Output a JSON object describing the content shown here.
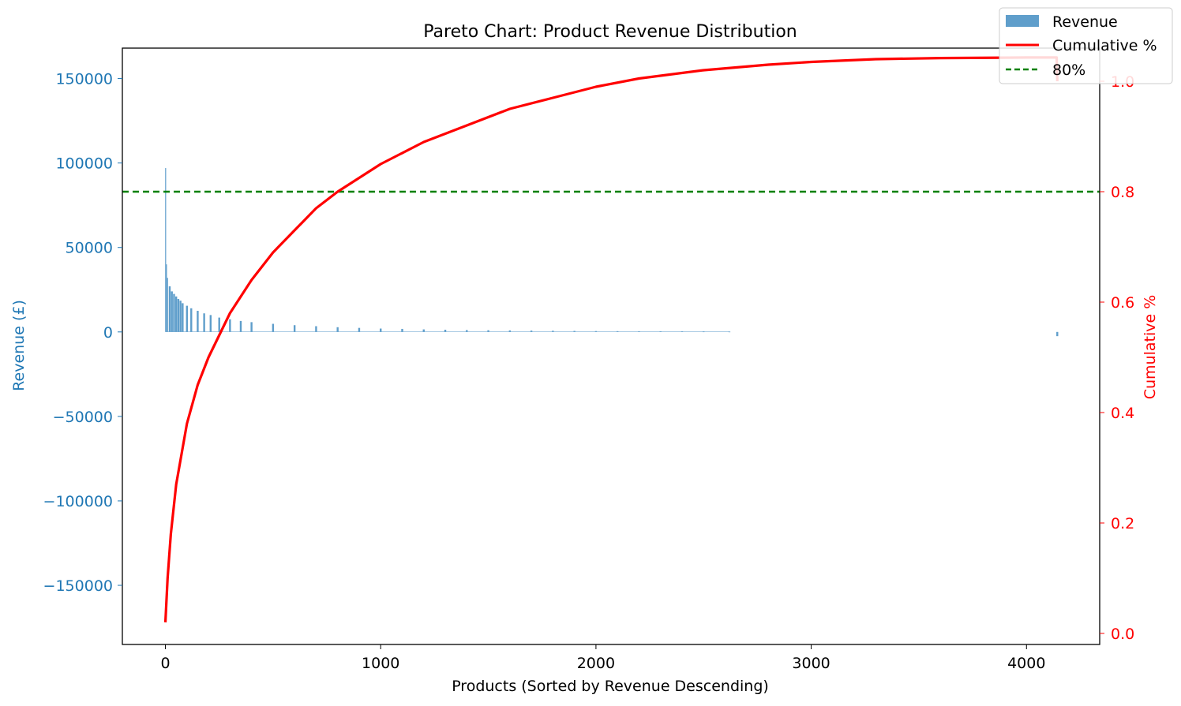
{
  "chart_data": {
    "type": "bar",
    "title": "Pareto Chart: Product Revenue Distribution",
    "xlabel": "Products (Sorted by Revenue Descending)",
    "ylabel": "Revenue (£)",
    "y2label": "Cumulative %",
    "xlim": [
      -200,
      4340
    ],
    "ylim": [
      -185000,
      168000
    ],
    "y2lim": [
      -0.02,
      1.06
    ],
    "xticks": [
      0,
      1000,
      2000,
      3000,
      4000
    ],
    "yticks": [
      -150000,
      -100000,
      -50000,
      0,
      50000,
      100000,
      150000
    ],
    "y2ticks": [
      0.0,
      0.2,
      0.4,
      0.6,
      0.8,
      1.0
    ],
    "ytick_labels": [
      "−150000",
      "−100000",
      "−50000",
      "0",
      "50000",
      "100000",
      "150000"
    ],
    "y2tick_labels": [
      "0.0",
      "0.2",
      "0.4",
      "0.6",
      "0.8",
      "1.0"
    ],
    "legend_position": "top-right",
    "grid": false,
    "colors": {
      "bars": "#5f9ecb",
      "cumulative": "#ff0000",
      "threshold": "#008000",
      "left_axis": "#1f77b4",
      "right_axis": "#ff0000"
    },
    "series": [
      {
        "name": "Revenue",
        "type": "bar",
        "axis": "left",
        "points": [
          [
            1,
            97000
          ],
          [
            5,
            40000
          ],
          [
            10,
            32000
          ],
          [
            20,
            27000
          ],
          [
            30,
            24000
          ],
          [
            40,
            22500
          ],
          [
            50,
            21000
          ],
          [
            60,
            19500
          ],
          [
            70,
            18500
          ],
          [
            80,
            17000
          ],
          [
            100,
            15500
          ],
          [
            120,
            14000
          ],
          [
            150,
            12500
          ],
          [
            180,
            11000
          ],
          [
            210,
            10000
          ],
          [
            250,
            8500
          ],
          [
            300,
            7500
          ],
          [
            350,
            6500
          ],
          [
            400,
            5800
          ],
          [
            500,
            4800
          ],
          [
            600,
            4000
          ],
          [
            700,
            3400
          ],
          [
            800,
            2800
          ],
          [
            900,
            2400
          ],
          [
            1000,
            2000
          ],
          [
            1100,
            1800
          ],
          [
            1200,
            1500
          ],
          [
            1300,
            1300
          ],
          [
            1400,
            1100
          ],
          [
            1500,
            1000
          ],
          [
            1600,
            900
          ],
          [
            1700,
            800
          ],
          [
            1800,
            700
          ],
          [
            1900,
            600
          ],
          [
            2000,
            500
          ],
          [
            2100,
            450
          ],
          [
            2200,
            400
          ],
          [
            2300,
            350
          ],
          [
            2400,
            300
          ],
          [
            2500,
            250
          ],
          [
            2620,
            200
          ],
          [
            4143,
            -2500
          ]
        ]
      },
      {
        "name": "Cumulative %",
        "type": "line",
        "axis": "right",
        "points": [
          [
            0,
            0.02
          ],
          [
            10,
            0.1
          ],
          [
            25,
            0.18
          ],
          [
            50,
            0.27
          ],
          [
            100,
            0.38
          ],
          [
            150,
            0.45
          ],
          [
            200,
            0.5
          ],
          [
            250,
            0.54
          ],
          [
            300,
            0.58
          ],
          [
            400,
            0.64
          ],
          [
            500,
            0.69
          ],
          [
            600,
            0.73
          ],
          [
            700,
            0.77
          ],
          [
            800,
            0.8
          ],
          [
            1000,
            0.85
          ],
          [
            1200,
            0.89
          ],
          [
            1400,
            0.92
          ],
          [
            1600,
            0.95
          ],
          [
            1800,
            0.97
          ],
          [
            2000,
            0.99
          ],
          [
            2200,
            1.005
          ],
          [
            2500,
            1.02
          ],
          [
            2800,
            1.03
          ],
          [
            3000,
            1.035
          ],
          [
            3300,
            1.04
          ],
          [
            3600,
            1.042
          ],
          [
            4000,
            1.043
          ],
          [
            4140,
            1.043
          ],
          [
            4143,
            1.0
          ]
        ]
      },
      {
        "name": "80%",
        "type": "hline",
        "axis": "right",
        "value": 0.8
      }
    ]
  }
}
